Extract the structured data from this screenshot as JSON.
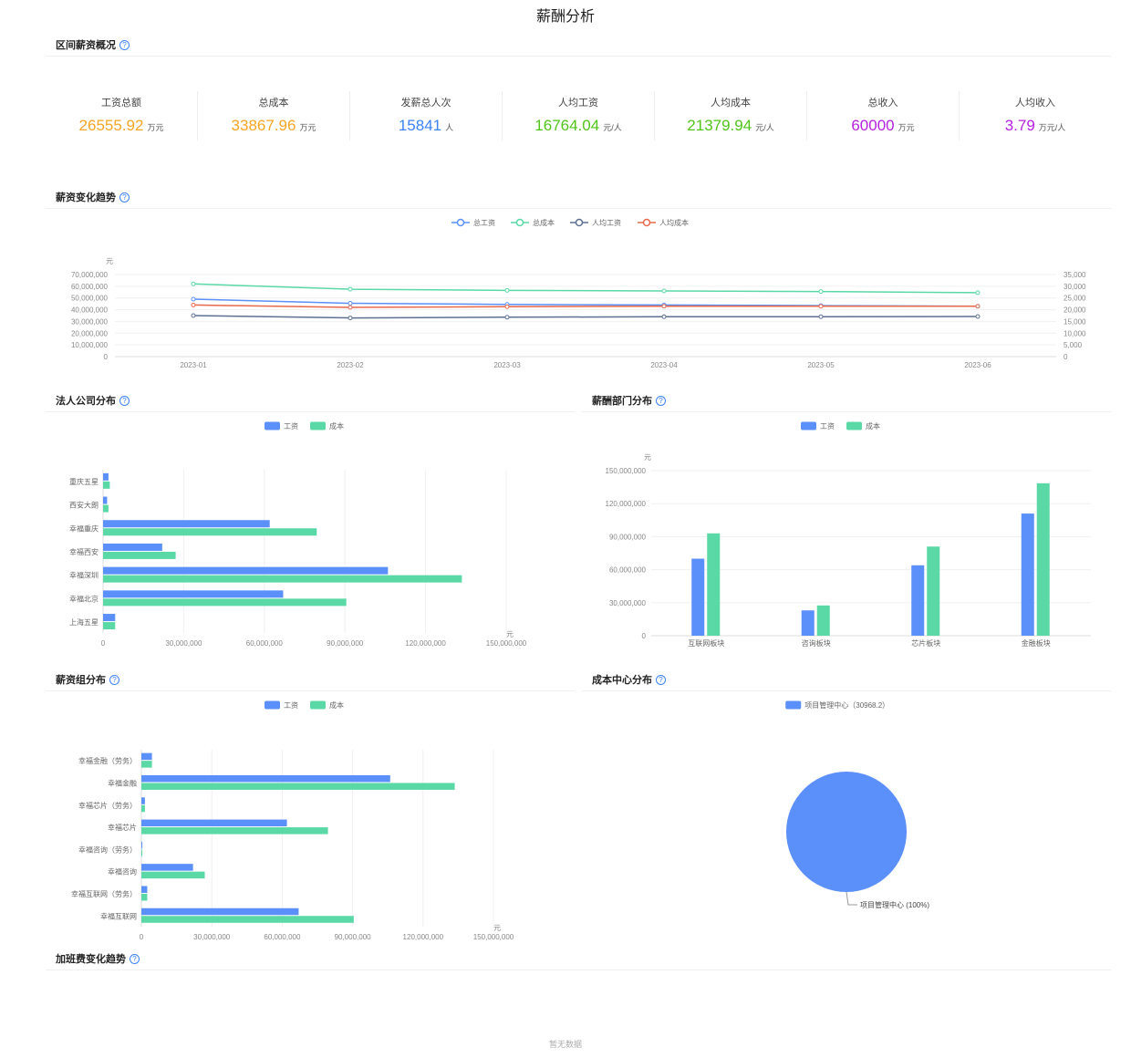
{
  "page": {
    "title": "薪酬分析"
  },
  "overview": {
    "title": "区间薪资概况",
    "kpis": [
      {
        "label": "工资总额",
        "value": "26555.92",
        "unit": "万元",
        "color": "#f5a623"
      },
      {
        "label": "总成本",
        "value": "33867.96",
        "unit": "万元",
        "color": "#f5a623"
      },
      {
        "label": "发薪总人次",
        "value": "15841",
        "unit": "人",
        "color": "#3b82f6"
      },
      {
        "label": "人均工资",
        "value": "16764.04",
        "unit": "元/人",
        "color": "#52c41a"
      },
      {
        "label": "人均成本",
        "value": "21379.94",
        "unit": "元/人",
        "color": "#52c41a"
      },
      {
        "label": "总收入",
        "value": "60000",
        "unit": "万元",
        "color": "#b620e0"
      },
      {
        "label": "人均收入",
        "value": "3.79",
        "unit": "万元/人",
        "color": "#b620e0"
      }
    ]
  },
  "sections": {
    "trend": "薪资变化趋势",
    "legal": "法人公司分布",
    "dept": "薪酬部门分布",
    "group": "薪资组分布",
    "cost_center": "成本中心分布",
    "overtime": "加班费变化趋势"
  },
  "empty_text": "暂无数据",
  "chart_data": [
    {
      "id": "trend",
      "type": "line",
      "x": [
        "2023-01",
        "2023-02",
        "2023-03",
        "2023-04",
        "2023-05",
        "2023-06"
      ],
      "ylabel": "元",
      "ylim": [
        0,
        70000000
      ],
      "y_ticks": [
        "0",
        "10,000,000",
        "20,000,000",
        "30,000,000",
        "40,000,000",
        "50,000,000",
        "60,000,000",
        "70,000,000"
      ],
      "y2lim": [
        0,
        35000
      ],
      "y2_ticks": [
        "0",
        "5,000",
        "10,000",
        "15,000",
        "20,000",
        "25,000",
        "30,000",
        "35,000"
      ],
      "legend": "top-center",
      "series": [
        {
          "name": "总工资",
          "axis": "left",
          "color": "#5b8ff9",
          "values": [
            49000000,
            45500000,
            44500000,
            44000000,
            43500000,
            43000000
          ]
        },
        {
          "name": "总成本",
          "axis": "left",
          "color": "#5ad8a6",
          "values": [
            62000000,
            57500000,
            56500000,
            56000000,
            55500000,
            54500000
          ]
        },
        {
          "name": "人均工资",
          "axis": "right",
          "color": "#5d7092",
          "values": [
            17500,
            16500,
            16800,
            17000,
            17000,
            17100
          ]
        },
        {
          "name": "人均成本",
          "axis": "right",
          "color": "#e8684a",
          "values": [
            22000,
            21000,
            21300,
            21500,
            21500,
            21500
          ]
        }
      ]
    },
    {
      "id": "legal",
      "type": "bar",
      "orientation": "horizontal",
      "categories": [
        "重庆五星",
        "西安大朗",
        "幸福重庆",
        "幸福西安",
        "幸福深圳",
        "幸福北京",
        "上海五星"
      ],
      "xlabel": "元",
      "xlim": [
        0,
        150000000
      ],
      "x_ticks": [
        "0",
        "30,000,000",
        "60,000,000",
        "90,000,000",
        "120,000,000",
        "150,000,000"
      ],
      "legend": "top-center",
      "series": [
        {
          "name": "工资",
          "color": "#5b8ff9",
          "values": [
            2000000,
            1500000,
            62000000,
            22000000,
            106000000,
            67000000,
            4500000
          ]
        },
        {
          "name": "成本",
          "color": "#5ad8a6",
          "values": [
            2500000,
            2000000,
            79500000,
            27000000,
            133500000,
            90500000,
            4500000
          ]
        }
      ]
    },
    {
      "id": "dept",
      "type": "bar",
      "orientation": "vertical",
      "categories": [
        "互联网板块",
        "咨询板块",
        "芯片板块",
        "金融板块"
      ],
      "ylabel": "元",
      "ylim": [
        0,
        150000000
      ],
      "y_ticks": [
        "0",
        "30,000,000",
        "60,000,000",
        "90,000,000",
        "120,000,000",
        "150,000,000"
      ],
      "legend": "top-center",
      "series": [
        {
          "name": "工资",
          "color": "#5b8ff9",
          "values": [
            70000000,
            23000000,
            64000000,
            111000000
          ]
        },
        {
          "name": "成本",
          "color": "#5ad8a6",
          "values": [
            93000000,
            27500000,
            81000000,
            138500000
          ]
        }
      ]
    },
    {
      "id": "group",
      "type": "bar",
      "orientation": "horizontal",
      "categories": [
        "幸福金融（劳务）",
        "幸福金融",
        "幸福芯片（劳务）",
        "幸福芯片",
        "幸福咨询（劳务）",
        "幸福咨询",
        "幸福互联网（劳务）",
        "幸福互联网"
      ],
      "xlabel": "元",
      "xlim": [
        0,
        150000000
      ],
      "x_ticks": [
        "0",
        "30,000,000",
        "60,000,000",
        "90,000,000",
        "120,000,000",
        "150,000,000"
      ],
      "legend": "top-center",
      "series": [
        {
          "name": "工资",
          "color": "#5b8ff9",
          "values": [
            4500000,
            106000000,
            1500000,
            62000000,
            400000,
            22000000,
            2500000,
            67000000
          ]
        },
        {
          "name": "成本",
          "color": "#5ad8a6",
          "values": [
            4500000,
            133500000,
            1500000,
            79500000,
            400000,
            27000000,
            2500000,
            90500000
          ]
        }
      ]
    },
    {
      "id": "cost_center",
      "type": "pie",
      "legend": "top-center",
      "legend_label": "项目管理中心（30968.2）",
      "slices": [
        {
          "name": "项目管理中心",
          "value": 30968.2,
          "percent": 100,
          "color": "#5b8ff9",
          "label": "项目管理中心 (100%)"
        }
      ]
    }
  ]
}
